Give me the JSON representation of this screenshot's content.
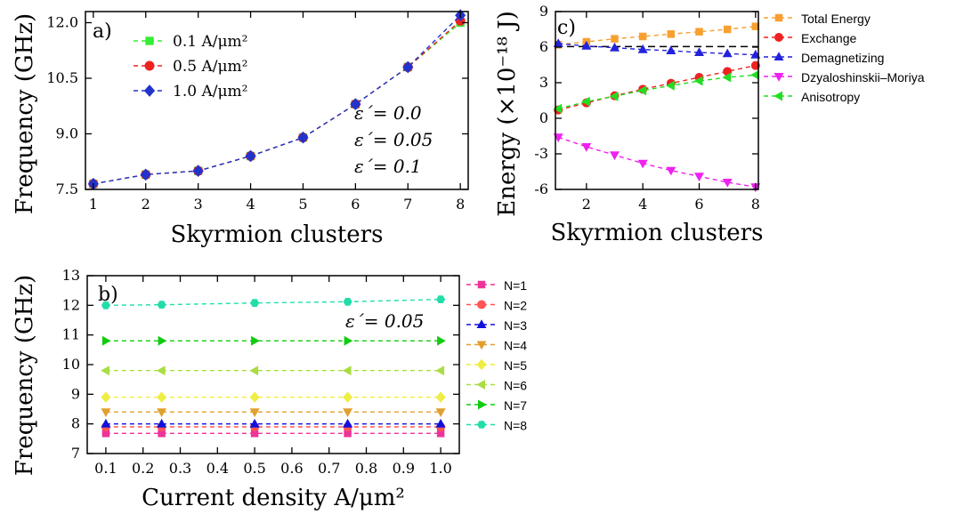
{
  "chart_data": [
    {
      "type": "line",
      "panel": "a)",
      "xlabel": "Skyrmion clusters",
      "ylabel": "Frequency (GHz)",
      "xlim": [
        0.85,
        8.15
      ],
      "ylim": [
        7.5,
        12.3
      ],
      "xticks": [
        1,
        2,
        3,
        4,
        5,
        6,
        7,
        8
      ],
      "yticks": [
        7.5,
        9.0,
        10.5,
        12.0
      ],
      "ytick_labels": [
        "7.5",
        "9.0",
        "10.5",
        "12.0"
      ],
      "x": [
        1,
        2,
        3,
        4,
        5,
        6,
        7,
        8
      ],
      "series": [
        {
          "name": "0.1 A/μm²",
          "color": "#33ee33",
          "marker": "square",
          "values": [
            7.65,
            7.9,
            8.0,
            8.4,
            8.9,
            9.8,
            10.8,
            12.0
          ]
        },
        {
          "name": "0.5 A/μm²",
          "color": "#ee2222",
          "marker": "circle",
          "values": [
            7.65,
            7.9,
            8.0,
            8.4,
            8.9,
            9.8,
            10.8,
            12.05
          ]
        },
        {
          "name": "1.0 A/μm²",
          "color": "#2233cc",
          "marker": "diamond",
          "values": [
            7.65,
            7.9,
            8.0,
            8.4,
            8.9,
            9.8,
            10.8,
            12.2
          ]
        }
      ],
      "annotations": [
        "ε´= 0.0",
        "ε´= 0.05",
        "ε´= 0.1"
      ],
      "legend_position": "top-left",
      "grid": false
    },
    {
      "type": "line",
      "panel": "c)",
      "xlabel": "Skyrmion clusters",
      "ylabel": "Energy (×10⁻¹⁸ J)",
      "xlim": [
        0.9,
        8.1
      ],
      "ylim": [
        -6,
        9
      ],
      "xticks": [
        2,
        4,
        6,
        8
      ],
      "yticks": [
        -6,
        -3,
        0,
        3,
        6,
        9
      ],
      "reference_line": 6.05,
      "x": [
        1,
        2,
        3,
        4,
        5,
        6,
        7,
        8
      ],
      "series": [
        {
          "name": "Total Energy",
          "color": "#f7a030",
          "marker": "square",
          "values": [
            6.2,
            6.45,
            6.7,
            6.9,
            7.1,
            7.3,
            7.5,
            7.75
          ]
        },
        {
          "name": "Exchange",
          "color": "#ee2222",
          "marker": "circle",
          "values": [
            0.7,
            1.3,
            1.9,
            2.45,
            2.95,
            3.45,
            3.95,
            4.45
          ]
        },
        {
          "name": "Demagnetizing",
          "color": "#2222dd",
          "marker": "triangle-up",
          "values": [
            6.3,
            6.1,
            5.95,
            5.8,
            5.7,
            5.55,
            5.45,
            5.35
          ]
        },
        {
          "name": "Dzyaloshinskii–Moriya",
          "color": "#ee22ee",
          "marker": "triangle-down",
          "values": [
            -1.6,
            -2.4,
            -3.1,
            -3.8,
            -4.4,
            -4.9,
            -5.4,
            -5.8
          ]
        },
        {
          "name": "Anisotropy",
          "color": "#22dd22",
          "marker": "triangle-left",
          "values": [
            0.8,
            1.4,
            1.85,
            2.35,
            2.75,
            3.15,
            3.45,
            3.65
          ]
        }
      ],
      "legend_position": "right",
      "grid": false
    },
    {
      "type": "line",
      "panel": "b)",
      "xlabel": "Current density A/μm²",
      "ylabel": "Frequency (GHz)",
      "xlim": [
        0.05,
        1.05
      ],
      "ylim": [
        7,
        13
      ],
      "xticks": [
        0.1,
        0.2,
        0.3,
        0.4,
        0.5,
        0.6,
        0.7,
        0.8,
        0.9,
        1.0
      ],
      "xtick_labels": [
        "0.1",
        "0.2",
        "0.3",
        "0.4",
        "0.5",
        "0.6",
        "0.7",
        "0.8",
        "0.9",
        "1.0"
      ],
      "yticks": [
        7,
        8,
        9,
        10,
        11,
        12,
        13
      ],
      "x": [
        0.1,
        0.25,
        0.5,
        0.75,
        1.0
      ],
      "series": [
        {
          "name": "N=1",
          "color": "#ee3399",
          "marker": "square",
          "values": [
            7.68,
            7.68,
            7.68,
            7.68,
            7.68
          ]
        },
        {
          "name": "N=2",
          "color": "#ff5555",
          "marker": "circle",
          "values": [
            7.9,
            7.9,
            7.9,
            7.9,
            7.9
          ]
        },
        {
          "name": "N=3",
          "color": "#1111dd",
          "marker": "triangle-up",
          "values": [
            8.0,
            8.0,
            8.0,
            8.0,
            8.0
          ]
        },
        {
          "name": "N=4",
          "color": "#e0a030",
          "marker": "triangle-down",
          "values": [
            8.4,
            8.4,
            8.4,
            8.4,
            8.4
          ]
        },
        {
          "name": "N=5",
          "color": "#eeee44",
          "marker": "diamond",
          "values": [
            8.9,
            8.9,
            8.9,
            8.9,
            8.9
          ]
        },
        {
          "name": "N=6",
          "color": "#aadd44",
          "marker": "triangle-left",
          "values": [
            9.8,
            9.8,
            9.8,
            9.8,
            9.8
          ]
        },
        {
          "name": "N=7",
          "color": "#11cc11",
          "marker": "triangle-right",
          "values": [
            10.8,
            10.8,
            10.8,
            10.8,
            10.8
          ]
        },
        {
          "name": "N=8",
          "color": "#22ddaa",
          "marker": "hexagon",
          "values": [
            12.0,
            12.02,
            12.08,
            12.12,
            12.2
          ]
        }
      ],
      "annotations": [
        "ε´= 0.05"
      ],
      "legend_position": "right",
      "grid": false
    }
  ]
}
